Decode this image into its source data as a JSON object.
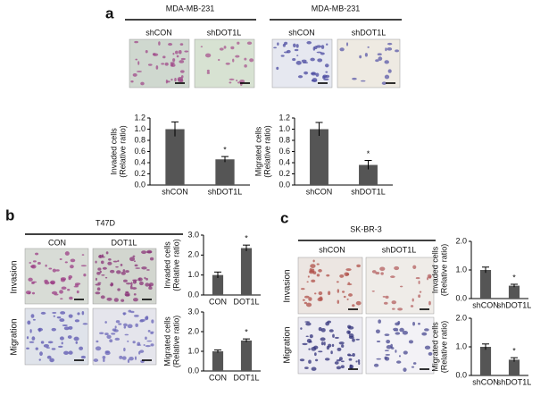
{
  "figure": {
    "panel_labels": [
      "a",
      "b",
      "c"
    ],
    "headers": [
      "MDA-MB-231",
      "MDA-MB-231",
      "T47D",
      "SK-BR-3"
    ],
    "image_columns": [
      "shCON",
      "shDOT1L",
      "shCON",
      "shDOT1L",
      "CON",
      "DOT1L",
      "shCON",
      "shDOT1L"
    ],
    "row_labels": [
      "Invasion",
      "Migration",
      "Invasion",
      "Migration"
    ]
  },
  "chart_data": [
    {
      "type": "bar",
      "ylabel": [
        "Invaded cells",
        "(Relative ratio)"
      ],
      "categories": [
        "shCON",
        "shDOT1L"
      ],
      "values": [
        1.0,
        0.46
      ],
      "errors": [
        0.13,
        0.05
      ],
      "color": "#555555",
      "ylim": [
        0,
        1.2
      ],
      "yticks": [
        {
          "value": 0,
          "label": "0.0"
        },
        {
          "value": 0.2,
          "label": "0.2"
        },
        {
          "value": 0.4,
          "label": "0.4"
        },
        {
          "value": 0.6,
          "label": "0.6"
        },
        {
          "value": 0.8,
          "label": "0.8"
        },
        {
          "value": 1.0,
          "label": "1.0"
        },
        {
          "value": 1.2,
          "label": "1.2"
        }
      ],
      "annotations": [
        {
          "text": "*",
          "category": "shDOT1L"
        }
      ]
    },
    {
      "type": "bar",
      "ylabel": [
        "Migrated cells",
        "(Relative ratio)"
      ],
      "categories": [
        "shCON",
        "shDOT1L"
      ],
      "values": [
        1.0,
        0.36
      ],
      "errors": [
        0.12,
        0.08
      ],
      "color": "#555555",
      "ylim": [
        0,
        1.2
      ],
      "yticks": [
        {
          "value": 0,
          "label": "0.0"
        },
        {
          "value": 0.2,
          "label": "0.2"
        },
        {
          "value": 0.4,
          "label": "0.4"
        },
        {
          "value": 0.6,
          "label": "0.6"
        },
        {
          "value": 0.8,
          "label": "0.8"
        },
        {
          "value": 1.0,
          "label": "1.0"
        },
        {
          "value": 1.2,
          "label": "1.2"
        }
      ],
      "annotations": [
        {
          "text": "*",
          "category": "shDOT1L"
        }
      ]
    },
    {
      "type": "bar",
      "ylabel": [
        "Invaded cells",
        "(Relative ratio)"
      ],
      "categories": [
        "CON",
        "DOT1L"
      ],
      "values": [
        1.0,
        2.35
      ],
      "errors": [
        0.15,
        0.15
      ],
      "color": "#555555",
      "ylim": [
        0,
        3.0
      ],
      "yticks": [
        {
          "value": 0,
          "label": "0.0"
        },
        {
          "value": 1.0,
          "label": "1.0"
        },
        {
          "value": 2.0,
          "label": "2.0"
        },
        {
          "value": 3.0,
          "label": "3.0"
        }
      ],
      "annotations": [
        {
          "text": "*",
          "category": "DOT1L"
        }
      ]
    },
    {
      "type": "bar",
      "ylabel": [
        "Migrated cells",
        "(Relative ratio)"
      ],
      "categories": [
        "CON",
        "DOT1L"
      ],
      "values": [
        1.0,
        1.55
      ],
      "errors": [
        0.07,
        0.08
      ],
      "color": "#555555",
      "ylim": [
        0,
        3.0
      ],
      "yticks": [
        {
          "value": 0,
          "label": "0.0"
        },
        {
          "value": 1.0,
          "label": "1.0"
        },
        {
          "value": 2.0,
          "label": "2.0"
        },
        {
          "value": 3.0,
          "label": "3.0"
        }
      ],
      "annotations": [
        {
          "text": "*",
          "category": "DOT1L"
        }
      ]
    },
    {
      "type": "bar",
      "ylabel": [
        "Invaded cells",
        "(Relative ratio)"
      ],
      "categories": [
        "shCON",
        "shDOT1L"
      ],
      "values": [
        1.0,
        0.45
      ],
      "errors": [
        0.1,
        0.05
      ],
      "color": "#555555",
      "ylim": [
        0,
        2.0
      ],
      "yticks": [
        {
          "value": 0,
          "label": "0.0"
        },
        {
          "value": 1.0,
          "label": "1.0"
        },
        {
          "value": 2.0,
          "label": "2.0"
        }
      ],
      "annotations": [
        {
          "text": "*",
          "category": "shDOT1L"
        }
      ]
    },
    {
      "type": "bar",
      "ylabel": [
        "Migrated cells",
        "(Relative ratio)"
      ],
      "categories": [
        "shCON",
        "shDOT1L"
      ],
      "values": [
        1.0,
        0.55
      ],
      "errors": [
        0.1,
        0.07
      ],
      "color": "#555555",
      "ylim": [
        0,
        2.0
      ],
      "yticks": [
        {
          "value": 0,
          "label": "0.0"
        },
        {
          "value": 1.0,
          "label": "1.0"
        },
        {
          "value": 2.0,
          "label": "2.0"
        }
      ],
      "annotations": [
        {
          "text": "*",
          "category": "shDOT1L"
        }
      ]
    }
  ]
}
